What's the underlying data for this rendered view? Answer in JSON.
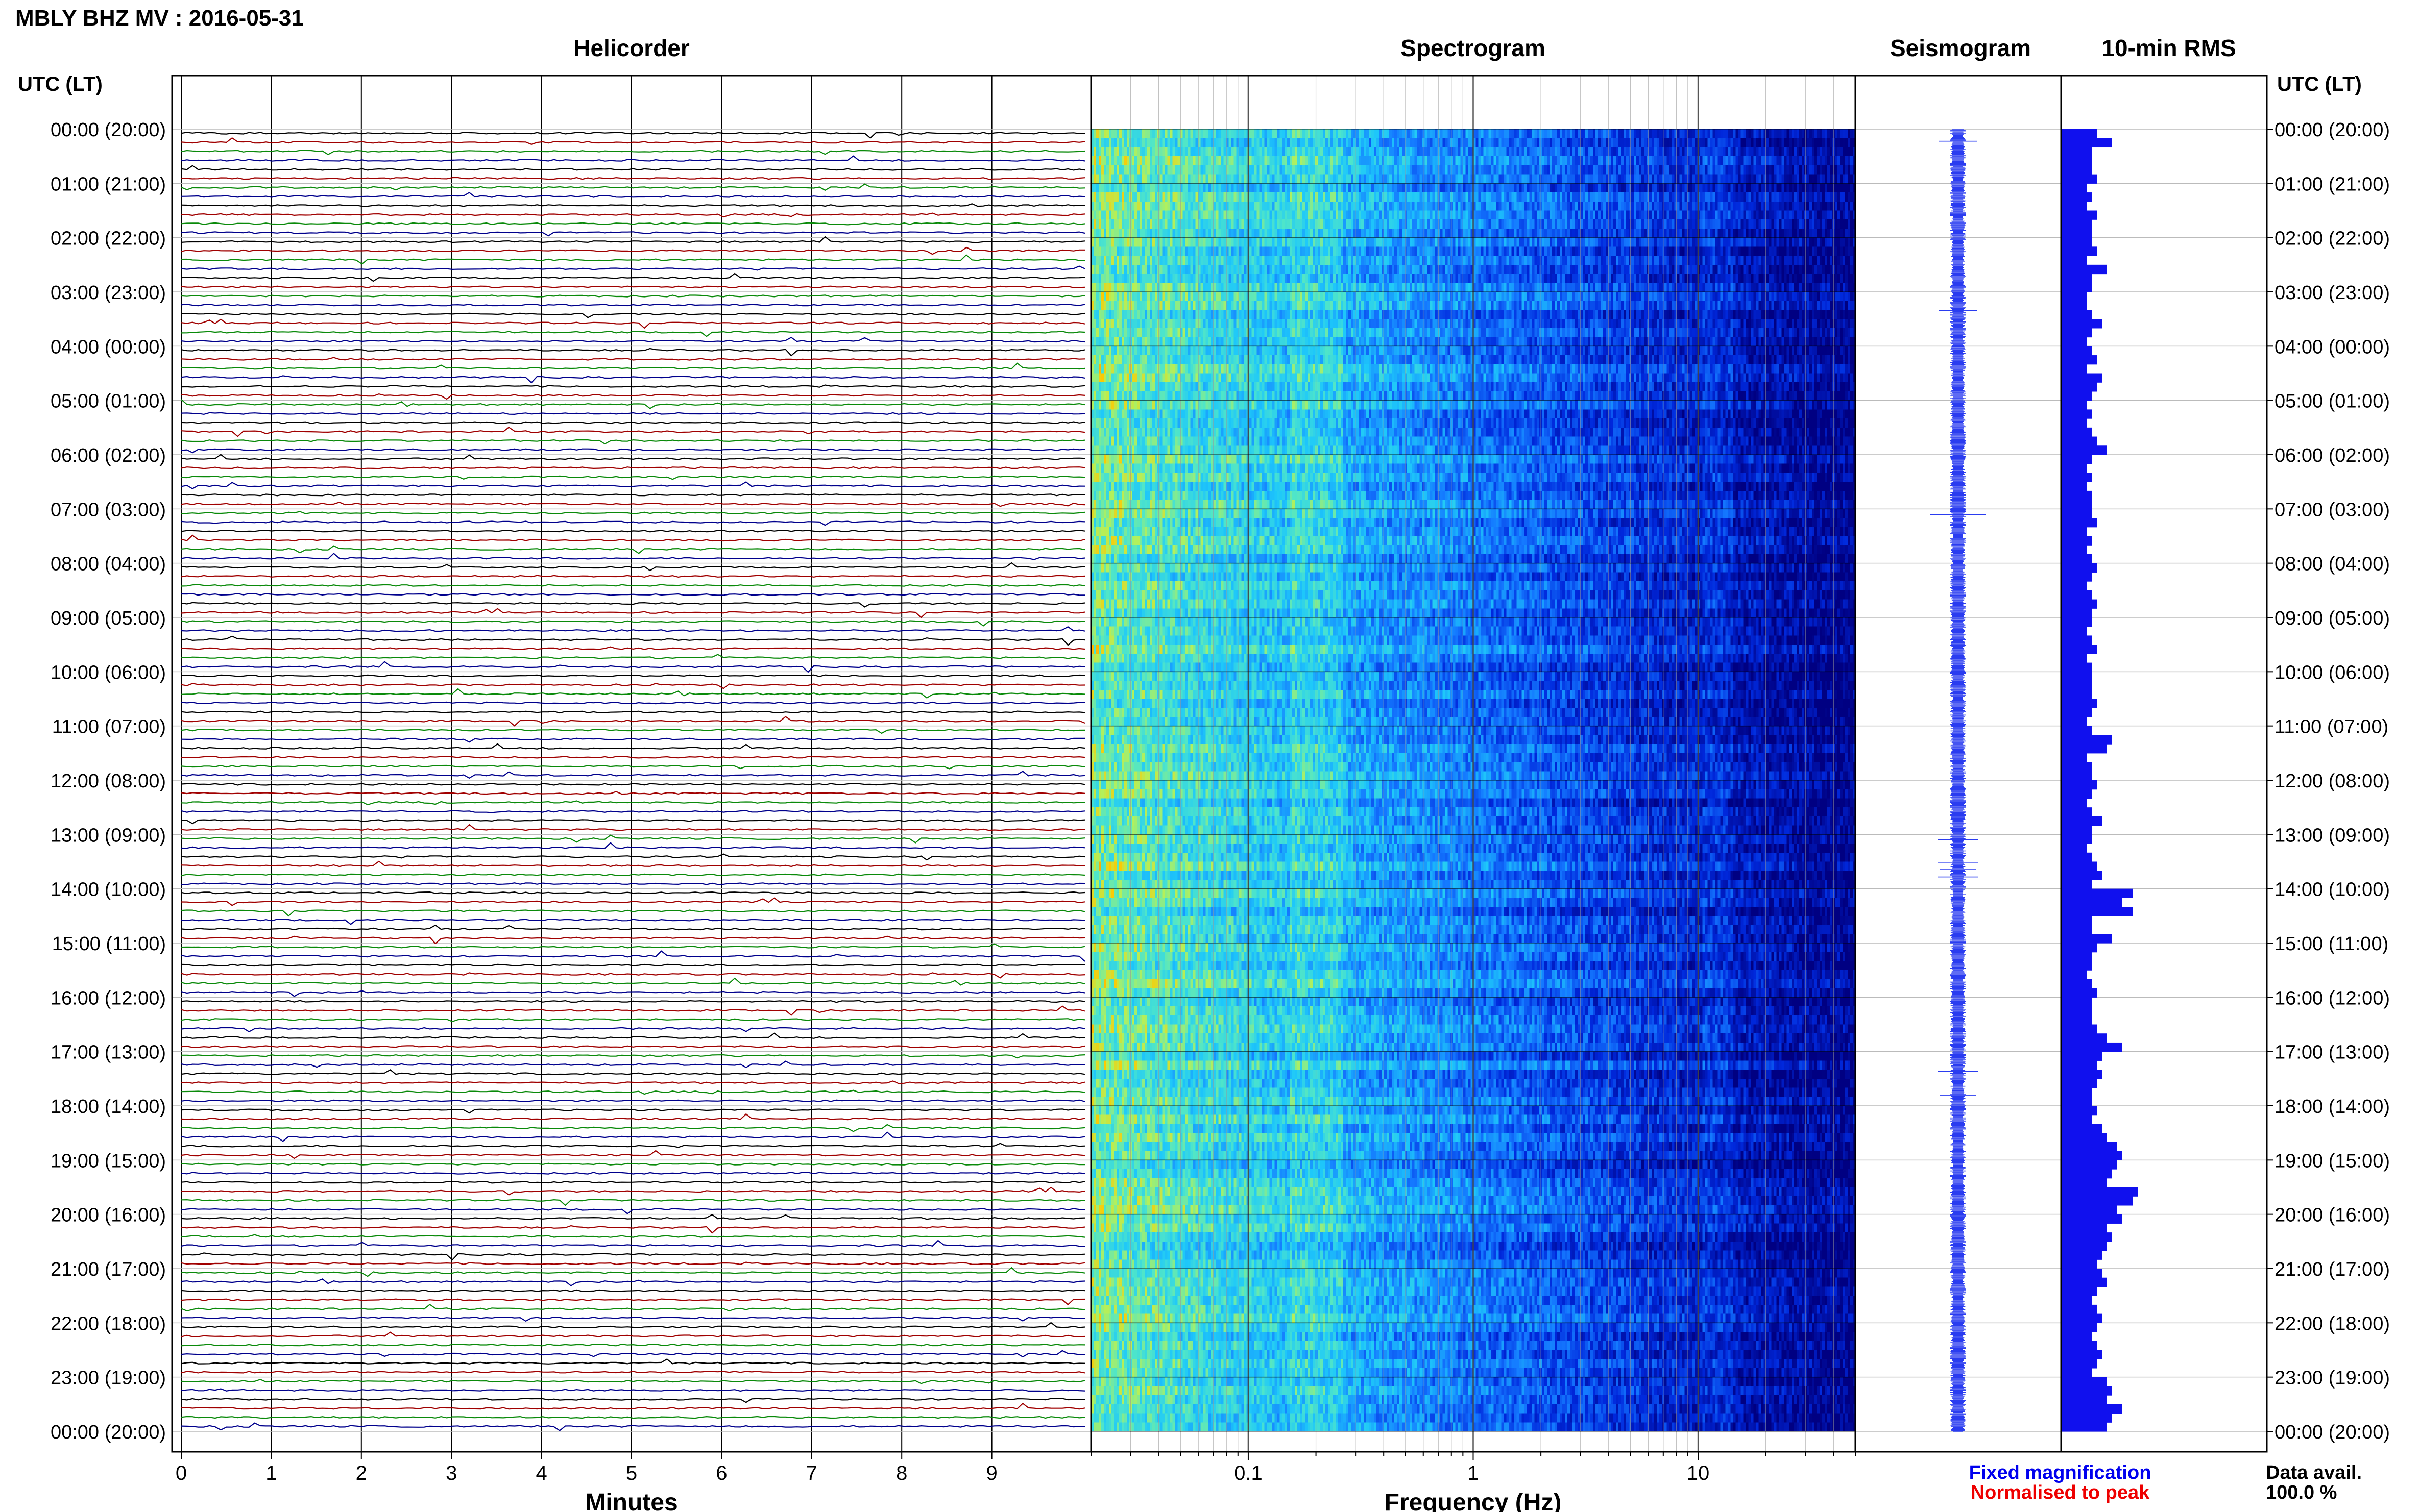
{
  "title": "MBLY BHZ MV : 2016-05-31",
  "colors": {
    "trace_cycle": [
      "#000000",
      "#a00000",
      "#0a8a0a",
      "#00008c"
    ],
    "rms_bar": "#1010ee",
    "seismo": "#2a3cf0",
    "fixed_note": "#0000ee",
    "norm_note": "#ee0000",
    "spectro_low": "#000090",
    "spectro_high": "#ff3000"
  },
  "hour_labels": [
    "00:00 (20:00)",
    "01:00 (21:00)",
    "02:00 (22:00)",
    "03:00 (23:00)",
    "04:00 (00:00)",
    "05:00 (01:00)",
    "06:00 (02:00)",
    "07:00 (03:00)",
    "08:00 (04:00)",
    "09:00 (05:00)",
    "10:00 (06:00)",
    "11:00 (07:00)",
    "12:00 (08:00)",
    "13:00 (09:00)",
    "14:00 (10:00)",
    "15:00 (11:00)",
    "16:00 (12:00)",
    "17:00 (13:00)",
    "18:00 (14:00)",
    "19:00 (15:00)",
    "20:00 (16:00)",
    "21:00 (17:00)",
    "22:00 (18:00)",
    "23:00 (19:00)",
    "00:00 (20:00)"
  ],
  "chart_data": [
    {
      "type": "line",
      "title": "Helicorder",
      "xlabel": "Minutes",
      "ylabel": "UTC (LT)",
      "x_ticks": [
        "0",
        "1",
        "2",
        "3",
        "4",
        "5",
        "6",
        "7",
        "8",
        "9"
      ],
      "xlim": [
        0,
        10
      ],
      "rows_per_hour": 6,
      "minutes_per_row": 10,
      "rows": 144,
      "grid": true
    },
    {
      "type": "heatmap",
      "title": "Spectrogram",
      "xlabel": "Frequency (Hz)",
      "x_scale": "log",
      "xlim": [
        0.02,
        50
      ],
      "x_ticks": [
        "0.1",
        "1",
        "10"
      ],
      "grid": true
    },
    {
      "type": "line",
      "title": "Seismogram",
      "grid": true
    },
    {
      "type": "bar",
      "title": "10-min RMS",
      "interval_minutes": 10,
      "values": [
        0.35,
        0.5,
        0.3,
        0.3,
        0.3,
        0.35,
        0.25,
        0.3,
        0.25,
        0.35,
        0.3,
        0.3,
        0.3,
        0.35,
        0.25,
        0.45,
        0.3,
        0.3,
        0.25,
        0.25,
        0.3,
        0.4,
        0.3,
        0.25,
        0.3,
        0.35,
        0.25,
        0.4,
        0.35,
        0.3,
        0.25,
        0.3,
        0.25,
        0.3,
        0.35,
        0.45,
        0.3,
        0.25,
        0.3,
        0.25,
        0.3,
        0.3,
        0.3,
        0.35,
        0.25,
        0.3,
        0.25,
        0.3,
        0.35,
        0.3,
        0.25,
        0.3,
        0.35,
        0.3,
        0.3,
        0.25,
        0.3,
        0.35,
        0.25,
        0.3,
        0.3,
        0.3,
        0.3,
        0.35,
        0.3,
        0.25,
        0.3,
        0.5,
        0.45,
        0.25,
        0.3,
        0.3,
        0.35,
        0.3,
        0.25,
        0.3,
        0.4,
        0.3,
        0.3,
        0.25,
        0.3,
        0.35,
        0.4,
        0.3,
        0.7,
        0.6,
        0.7,
        0.3,
        0.3,
        0.5,
        0.35,
        0.3,
        0.3,
        0.25,
        0.3,
        0.35,
        0.3,
        0.3,
        0.3,
        0.35,
        0.45,
        0.6,
        0.4,
        0.35,
        0.4,
        0.35,
        0.3,
        0.3,
        0.35,
        0.3,
        0.4,
        0.45,
        0.55,
        0.6,
        0.55,
        0.5,
        0.45,
        0.75,
        0.7,
        0.55,
        0.6,
        0.45,
        0.5,
        0.45,
        0.4,
        0.35,
        0.4,
        0.45,
        0.35,
        0.3,
        0.35,
        0.4,
        0.35,
        0.3,
        0.35,
        0.4,
        0.35,
        0.3,
        0.45,
        0.5,
        0.45,
        0.6,
        0.5,
        0.45
      ],
      "grid": true
    }
  ],
  "footer": {
    "fixed_magnification": "Fixed magnification",
    "normalised_to_peak": "Normalised to peak",
    "data_avail_label": "Data avail.",
    "data_avail_value": "100.0 %"
  }
}
